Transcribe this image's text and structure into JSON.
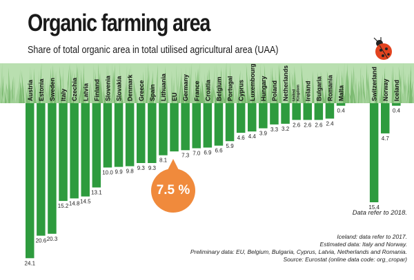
{
  "header": {
    "title": "Organic farming area",
    "subtitle": "Share of total organic area in total utilised agricultural area (UAA)"
  },
  "chart_data": {
    "type": "bar",
    "orientation": "vertical-inverted",
    "title": "Organic farming area",
    "subtitle": "Share of total organic area in total utilised agricultural area (UAA)",
    "unit": "%",
    "categories": [
      "Austria",
      "Estonia",
      "Sweden",
      "Italy",
      "Czechia",
      "Latvia",
      "Finland",
      "Slovenia",
      "Slovakia",
      "Denmark",
      "Greece",
      "Spain",
      "Lithuania",
      "EU",
      "Germany",
      "France",
      "Croatia",
      "Belgium",
      "Portugal",
      "Cyprus",
      "Luxembourg",
      "Hungary",
      "Poland",
      "Netherlands",
      "United Kingdom",
      "Ireland",
      "Bulgaria",
      "Romania",
      "Malta",
      "Switzerland",
      "Norway",
      "Iceland"
    ],
    "values": [
      24.1,
      20.6,
      20.3,
      15.2,
      14.8,
      14.5,
      13.1,
      10.0,
      9.9,
      9.8,
      9.3,
      9.3,
      8.1,
      7.5,
      7.3,
      7.0,
      6.9,
      6.6,
      5.9,
      4.6,
      4.4,
      3.9,
      3.3,
      3.2,
      2.6,
      2.6,
      2.6,
      2.4,
      0.4,
      15.4,
      4.7,
      0.4
    ],
    "value_labels": [
      "24.1",
      "20.6",
      "20.3",
      "15.2",
      "14.8",
      "14.5",
      "13.1",
      "10.0",
      "9.9",
      "9.8",
      "9.3",
      "9.3",
      "8.1",
      "",
      "7.3",
      "7.0",
      "6.9",
      "6.6",
      "5.9",
      "4.6",
      "4.4",
      "3.9",
      "3.3",
      "3.2",
      "2.6",
      "2.6",
      "2.6",
      "2.4",
      "0.4",
      "15.4",
      "4.7",
      "0.4"
    ],
    "highlight": {
      "category": "EU",
      "label": "7.5 %"
    },
    "ylim": [
      0,
      25
    ],
    "colors": {
      "bar": "#2e9b3e",
      "grass": "#b9dfb0",
      "highlight": "#f08a3c"
    }
  },
  "notes": {
    "data_year": "Data refer to 2018.",
    "iceland": "Iceland: data refer to 2017.",
    "estimated": "Estimated data:  Italy and Norway.",
    "preliminary": "Preliminary data: EU, Belgium, Bulgaria, Cyprus, Latvia, Netherlands and Romania.",
    "source": "Source: Eurostat (online data code: org_cropar)"
  }
}
